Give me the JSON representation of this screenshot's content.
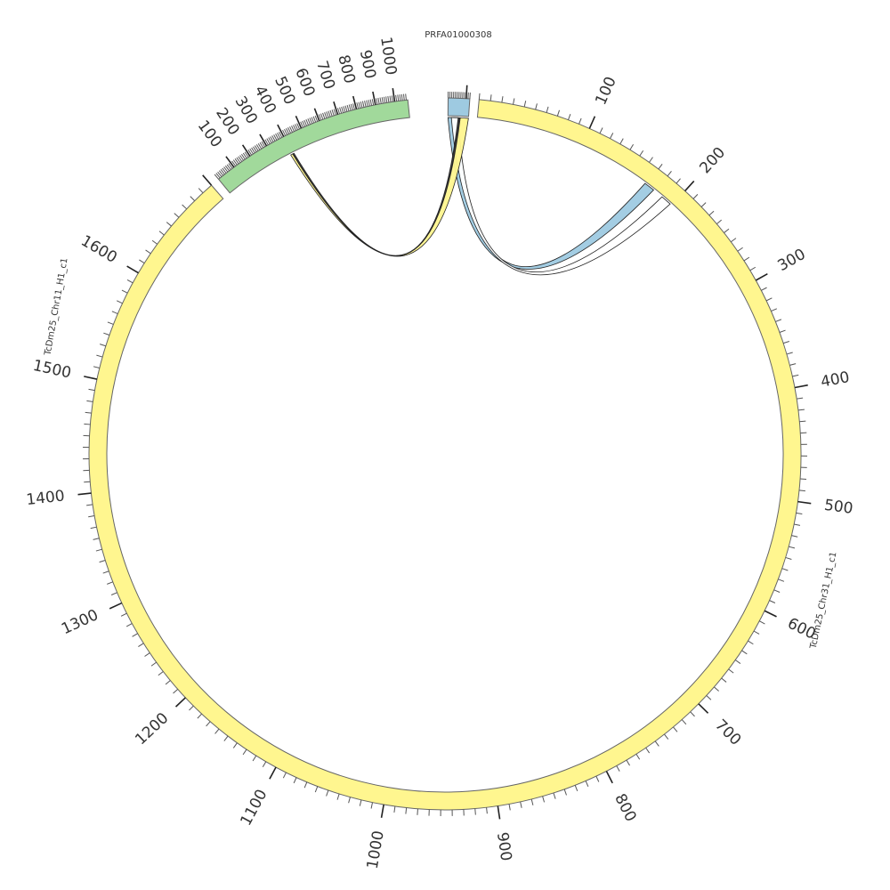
{
  "diagram": {
    "type": "circos",
    "chromosomes": [
      {
        "id": "prfa",
        "label": "PRFA01000308",
        "length": 120,
        "color": "#9ecae1",
        "tick_labels": []
      },
      {
        "id": "chr31",
        "label": "TcDm25_Chr31_H1_c1",
        "length": 1700,
        "color": "#fff68f",
        "tick_labels": [
          "100",
          "200",
          "300",
          "400",
          "500",
          "600",
          "700",
          "800",
          "900",
          "1000",
          "1100",
          "1200",
          "1300",
          "1400",
          "1500",
          "1600"
        ]
      },
      {
        "id": "chr11",
        "label": "TcDm25_Chr11_H1_c1",
        "length": 1068,
        "color": "#a1d99b",
        "tick_labels": [
          "100",
          "200",
          "300",
          "400",
          "500",
          "600",
          "700",
          "800",
          "900",
          "1000"
        ]
      }
    ],
    "links": [
      {
        "from": "prfa",
        "from_start": 0,
        "from_end": 60,
        "to": "chr31",
        "to_start": 168,
        "to_end": 178,
        "color": "#9ecae1"
      },
      {
        "from": "prfa",
        "from_start": 20,
        "from_end": 60,
        "to": "chr31",
        "to_start": 188,
        "to_end": 198,
        "color": "#ffffff"
      },
      {
        "from": "prfa",
        "from_start": 68,
        "from_end": 120,
        "to": "chr11",
        "to_start": 389,
        "to_end": 401,
        "color": "#fff68f"
      },
      {
        "from": "prfa",
        "from_start": 60,
        "from_end": 72,
        "to": "chr11",
        "to_start": 401,
        "to_end": 409,
        "color": "#333333"
      }
    ]
  }
}
